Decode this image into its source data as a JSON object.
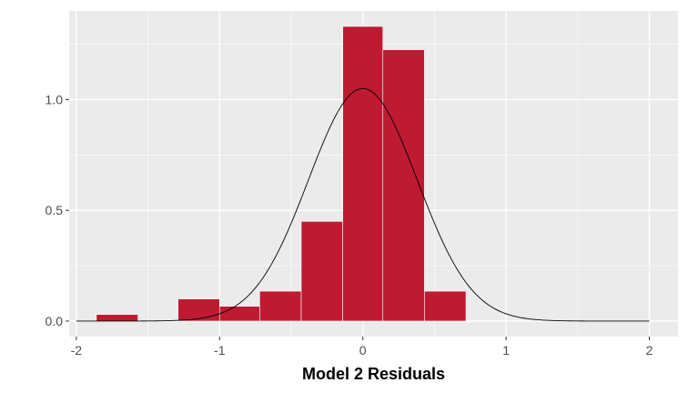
{
  "chart_data": {
    "type": "bar",
    "xlabel": "Model 2 Residuals",
    "ylabel": "",
    "xlim": [
      -2.05,
      2.2
    ],
    "ylim": [
      -0.07,
      1.4
    ],
    "x_ticks": [
      -2,
      -1,
      0,
      1,
      2
    ],
    "x_tick_labels": [
      "-2",
      "-1",
      "0",
      "1",
      "2"
    ],
    "y_ticks": [
      0.0,
      0.5,
      1.0
    ],
    "y_tick_labels": [
      "0.0",
      "0.5",
      "1.0"
    ],
    "grid": true,
    "bins": [
      {
        "x0": -1.86,
        "x1": -1.57,
        "density": 0.03
      },
      {
        "x0": -1.29,
        "x1": -1.0,
        "density": 0.1
      },
      {
        "x0": -1.0,
        "x1": -0.72,
        "density": 0.067
      },
      {
        "x0": -0.72,
        "x1": -0.43,
        "density": 0.135
      },
      {
        "x0": -0.43,
        "x1": -0.14,
        "density": 0.45
      },
      {
        "x0": -0.14,
        "x1": 0.14,
        "density": 1.33
      },
      {
        "x0": 0.14,
        "x1": 0.43,
        "density": 1.225
      },
      {
        "x0": 0.43,
        "x1": 0.72,
        "density": 0.135
      }
    ],
    "density_curve": {
      "type": "normal",
      "mean": 0.0,
      "sd": 0.38,
      "x_range": [
        -2,
        2
      ]
    },
    "colors": {
      "panel_background": "#ebebeb",
      "grid": "#ffffff",
      "bar_fill": "#be1a32",
      "bar_outline": "#ffffff",
      "curve": "#000000"
    }
  }
}
